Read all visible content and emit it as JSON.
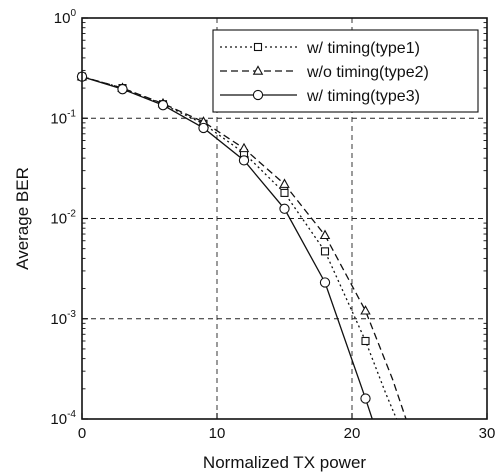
{
  "chart_data": {
    "type": "line",
    "title": "",
    "xlabel": "Normalized TX power",
    "ylabel": "Average BER",
    "xlim": [
      0,
      30
    ],
    "ylim": [
      0.0001,
      1
    ],
    "y_scale": "log",
    "grid": true,
    "legend_position": "top-right",
    "x_ticks": [
      {
        "value": 0,
        "label": "0"
      },
      {
        "value": 10,
        "label": "10"
      },
      {
        "value": 20,
        "label": "20"
      },
      {
        "value": 30,
        "label": "30"
      }
    ],
    "y_ticks": [
      {
        "value": 1,
        "base": "10",
        "exp": "0"
      },
      {
        "value": 0.1,
        "base": "10",
        "exp": "-1"
      },
      {
        "value": 0.01,
        "base": "10",
        "exp": "-2"
      },
      {
        "value": 0.001,
        "base": "10",
        "exp": "-3"
      },
      {
        "value": 0.0001,
        "base": "10",
        "exp": "-4"
      }
    ],
    "series": [
      {
        "name": "w/ timing(type1)",
        "line_style": "dotted",
        "marker": "square",
        "color": "#111111",
        "markers": [
          [
            0,
            0.26
          ],
          [
            3,
            0.2
          ],
          [
            6,
            0.138
          ],
          [
            9,
            0.088
          ],
          [
            12,
            0.045
          ],
          [
            15,
            0.018
          ],
          [
            18,
            0.0047
          ],
          [
            21,
            0.0006
          ]
        ],
        "curve": [
          [
            0,
            0.26
          ],
          [
            3,
            0.2
          ],
          [
            6,
            0.138
          ],
          [
            9,
            0.088
          ],
          [
            12,
            0.045
          ],
          [
            15,
            0.018
          ],
          [
            18,
            0.0047
          ],
          [
            21,
            0.0006
          ],
          [
            22.5,
            0.00018
          ],
          [
            23.3,
            0.0001
          ]
        ]
      },
      {
        "name": "w/o timing(type2)",
        "line_style": "dashed",
        "marker": "triangle",
        "color": "#111111",
        "markers": [
          [
            0,
            0.26
          ],
          [
            3,
            0.2
          ],
          [
            6,
            0.14
          ],
          [
            9,
            0.092
          ],
          [
            12,
            0.05
          ],
          [
            15,
            0.022
          ],
          [
            18,
            0.0068
          ],
          [
            21,
            0.0012
          ]
        ],
        "curve": [
          [
            0,
            0.26
          ],
          [
            3,
            0.2
          ],
          [
            6,
            0.14
          ],
          [
            9,
            0.092
          ],
          [
            12,
            0.05
          ],
          [
            15,
            0.022
          ],
          [
            18,
            0.0068
          ],
          [
            21,
            0.0012
          ],
          [
            23,
            0.00025
          ],
          [
            24,
            0.0001
          ]
        ]
      },
      {
        "name": "w/ timing(type3)",
        "line_style": "solid",
        "marker": "circle",
        "color": "#111111",
        "markers": [
          [
            0,
            0.26
          ],
          [
            3,
            0.195
          ],
          [
            6,
            0.135
          ],
          [
            9,
            0.08
          ],
          [
            12,
            0.038
          ],
          [
            15,
            0.0125
          ],
          [
            18,
            0.0023
          ],
          [
            21,
            0.00016
          ]
        ],
        "curve": [
          [
            0,
            0.26
          ],
          [
            3,
            0.195
          ],
          [
            6,
            0.135
          ],
          [
            9,
            0.08
          ],
          [
            12,
            0.038
          ],
          [
            15,
            0.0125
          ],
          [
            18,
            0.0023
          ],
          [
            21,
            0.00016
          ],
          [
            21.5,
            0.0001
          ]
        ]
      }
    ]
  }
}
